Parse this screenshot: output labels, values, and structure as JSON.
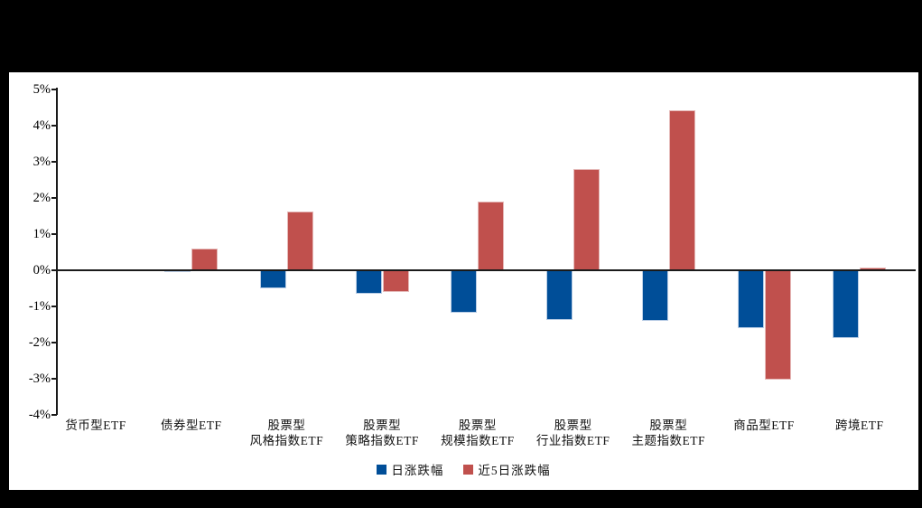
{
  "frame": {
    "background": "#000000",
    "panel_background": "#ffffff",
    "axis_color": "#1a1a1a",
    "text_color": "#000000"
  },
  "chart_data": {
    "type": "bar",
    "title": "",
    "xlabel": "",
    "ylabel": "",
    "ylim": [
      -4,
      5
    ],
    "ytick_step": 1,
    "ytick_labels": [
      "5%",
      "4%",
      "3%",
      "2%",
      "1%",
      "0%",
      "-1%",
      "-2%",
      "-3%",
      "-4%"
    ],
    "grid": false,
    "legend_position": "bottom-center",
    "categories": [
      {
        "line1": "货币型ETF",
        "line2": ""
      },
      {
        "line1": "债券型ETF",
        "line2": ""
      },
      {
        "line1": "股票型",
        "line2": "风格指数ETF"
      },
      {
        "line1": "股票型",
        "line2": "策略指数ETF"
      },
      {
        "line1": "股票型",
        "line2": "规模指数ETF"
      },
      {
        "line1": "股票型",
        "line2": "行业指数ETF"
      },
      {
        "line1": "股票型",
        "line2": "主题指数ETF"
      },
      {
        "line1": "商品型ETF",
        "line2": ""
      },
      {
        "line1": "跨境ETF",
        "line2": ""
      }
    ],
    "series": [
      {
        "name": "日涨跌幅",
        "color": "#004E98",
        "border_color": "#b9cde5",
        "values": [
          0.0,
          -0.05,
          -0.5,
          -0.65,
          -1.18,
          -1.37,
          -1.4,
          -1.6,
          -1.87
        ]
      },
      {
        "name": "近5日涨跌幅",
        "color": "#C0504D",
        "border_color": "#e5b9b8",
        "values": [
          0.0,
          0.6,
          1.63,
          -0.6,
          1.91,
          2.79,
          4.43,
          -3.03,
          0.08
        ]
      }
    ]
  }
}
